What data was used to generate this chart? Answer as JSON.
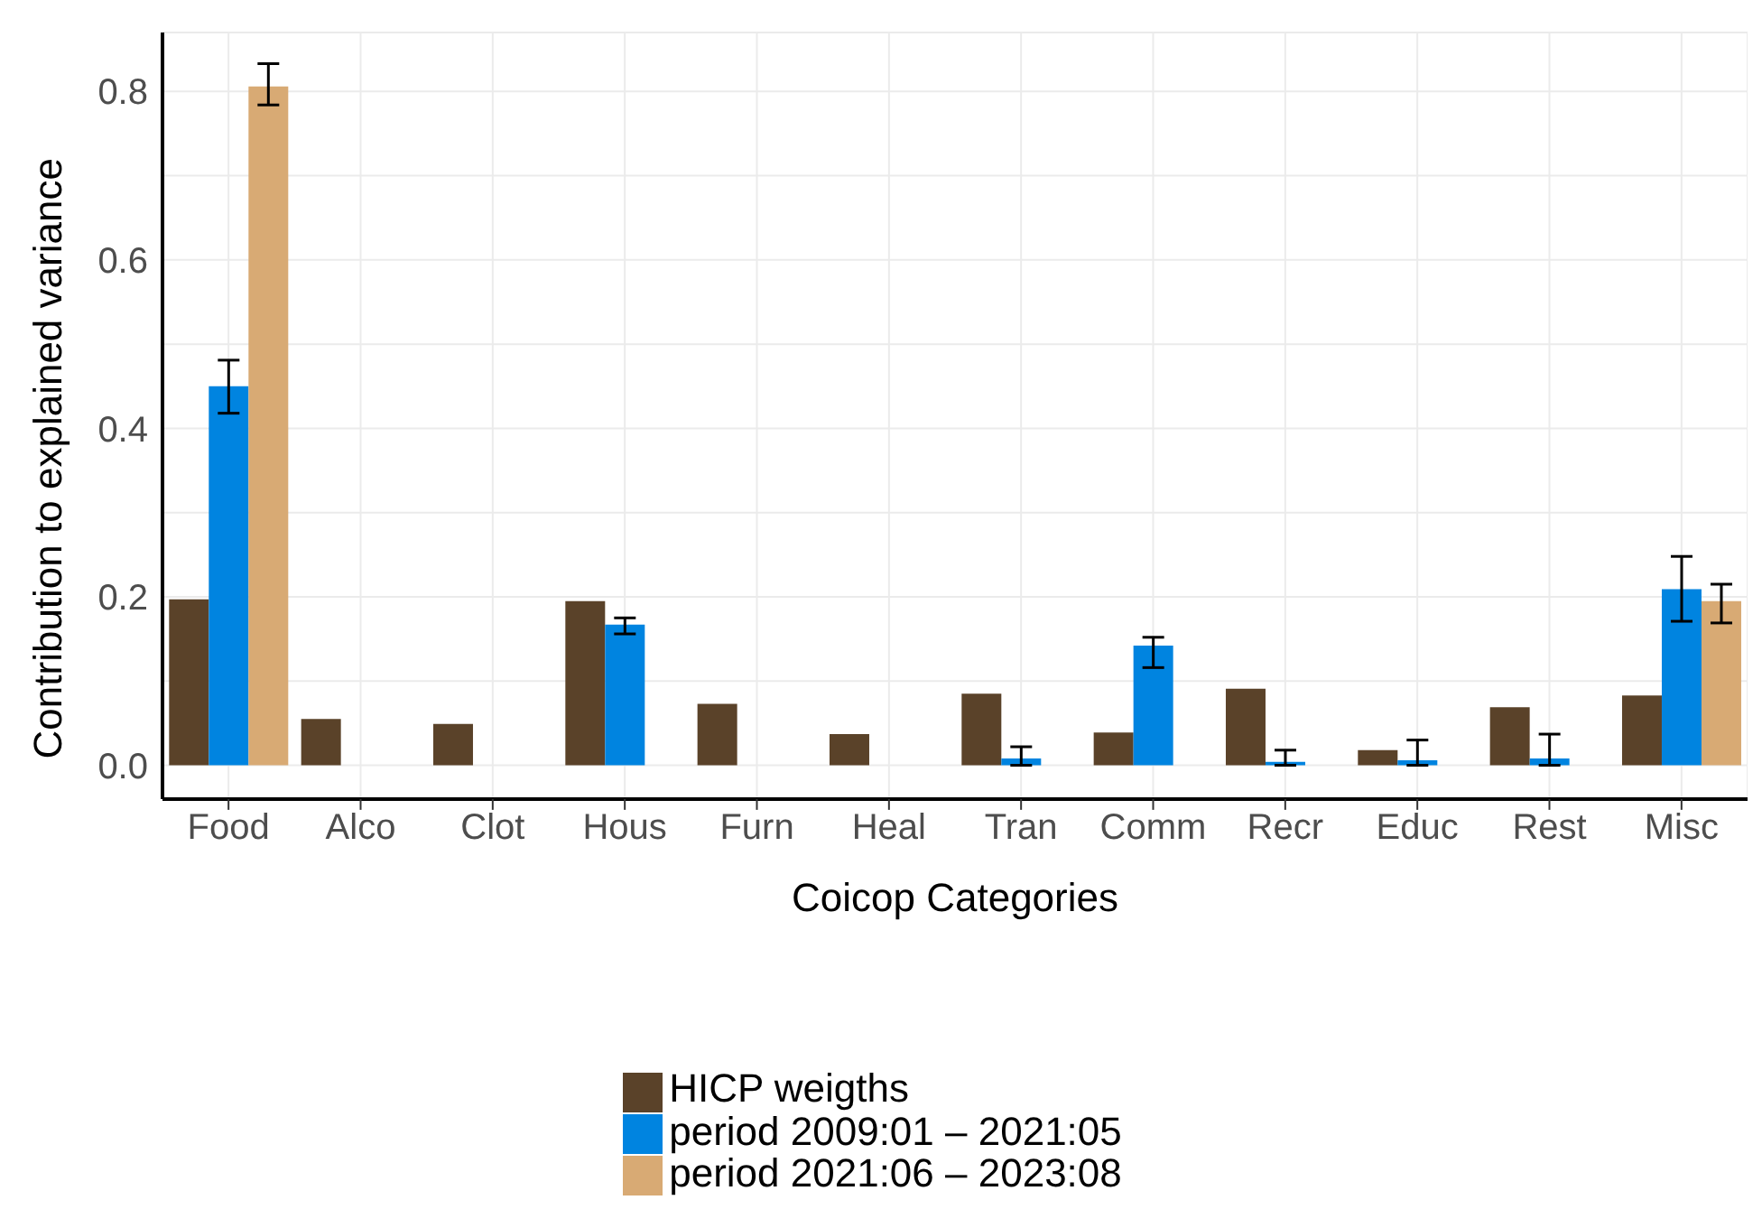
{
  "chart_data": {
    "type": "bar",
    "xlabel": "Coicop Categories",
    "ylabel": "Contribution to explained variance",
    "categories": [
      "Food",
      "Alco",
      "Clot",
      "Hous",
      "Furn",
      "Heal",
      "Tran",
      "Comm",
      "Recr",
      "Educ",
      "Rest",
      "Misc"
    ],
    "series": [
      {
        "name": "HICP weigths",
        "color": "#5a4229",
        "values": [
          0.197,
          0.055,
          0.049,
          0.195,
          0.073,
          0.037,
          0.085,
          0.039,
          0.091,
          0.018,
          0.069,
          0.083
        ]
      },
      {
        "name": "period 2009:01 – 2021:05",
        "color": "#0084e0",
        "values": [
          0.45,
          0,
          0,
          0.167,
          0,
          0,
          0.008,
          0.142,
          0.004,
          0.006,
          0.008,
          0.209
        ],
        "errors": [
          [
            0.418,
            0.481
          ],
          null,
          null,
          [
            0.156,
            0.175
          ],
          null,
          null,
          [
            0,
            0.022
          ],
          [
            0.116,
            0.152
          ],
          [
            0,
            0.018
          ],
          [
            0,
            0.03
          ],
          [
            0,
            0.037
          ],
          [
            0.171,
            0.248
          ]
        ]
      },
      {
        "name": "period 2021:06 – 2023:08",
        "color": "#d8aa74",
        "values": [
          0.806,
          0,
          0,
          0,
          0,
          0,
          0,
          0,
          0,
          0,
          0,
          0.195
        ],
        "errors": [
          [
            0.784,
            0.833
          ],
          null,
          null,
          null,
          null,
          null,
          null,
          null,
          null,
          null,
          null,
          [
            0.169,
            0.215
          ]
        ]
      }
    ],
    "ylim": [
      -0.04,
      0.87
    ],
    "yticks": [
      {
        "value": 0,
        "label": "0.0"
      },
      {
        "value": 0.1,
        "label": null
      },
      {
        "value": 0.2,
        "label": "0.2"
      },
      {
        "value": 0.3,
        "label": null
      },
      {
        "value": 0.4,
        "label": "0.4"
      },
      {
        "value": 0.5,
        "label": null
      },
      {
        "value": 0.6,
        "label": "0.6"
      },
      {
        "value": 0.7,
        "label": null
      },
      {
        "value": 0.8,
        "label": "0.8"
      }
    ],
    "grid": true,
    "legend": "bottom"
  }
}
